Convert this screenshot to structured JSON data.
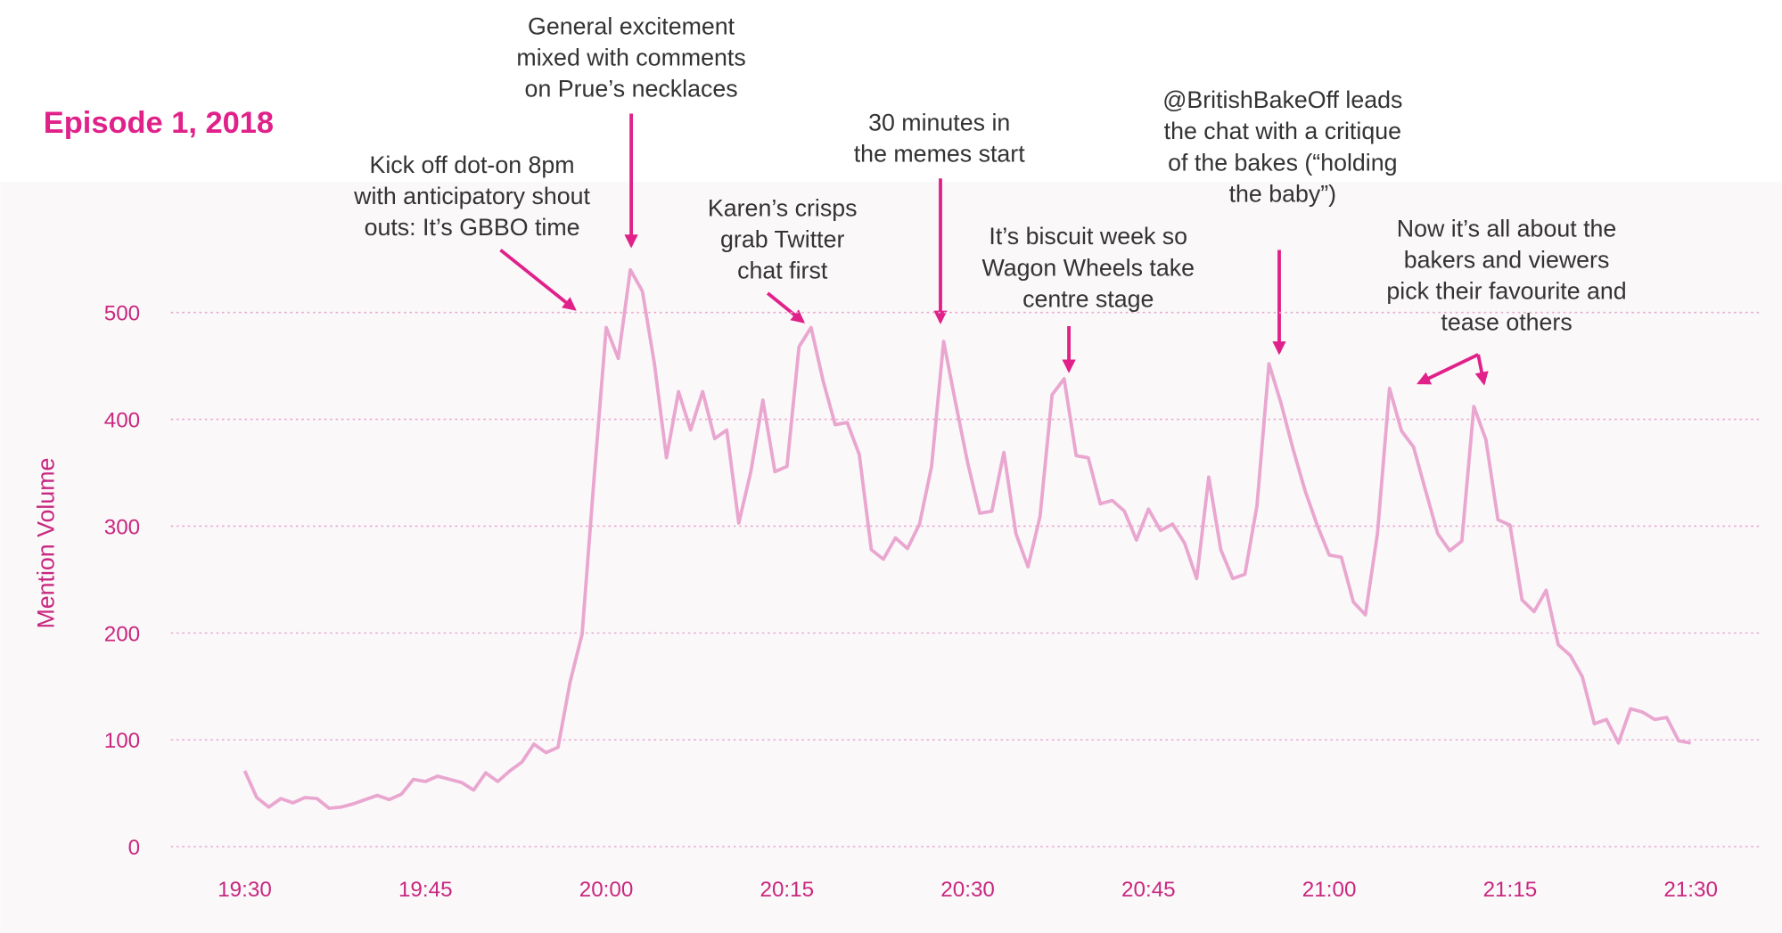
{
  "chart_data": {
    "type": "line",
    "title": "Episode 1, 2018",
    "y_label": "Mention Volume",
    "categories": [
      "19:30",
      null,
      null,
      null,
      null,
      null,
      null,
      null,
      null,
      null,
      null,
      null,
      null,
      null,
      null,
      "19:45",
      null,
      null,
      null,
      null,
      null,
      null,
      null,
      null,
      null,
      null,
      null,
      null,
      null,
      null,
      "20:00",
      null,
      null,
      null,
      null,
      null,
      null,
      null,
      null,
      null,
      null,
      null,
      null,
      null,
      null,
      "20:15",
      null,
      null,
      null,
      null,
      null,
      null,
      null,
      null,
      null,
      null,
      null,
      null,
      null,
      null,
      "20:30",
      null,
      null,
      null,
      null,
      null,
      null,
      null,
      null,
      null,
      null,
      null,
      null,
      null,
      null,
      "20:45",
      null,
      null,
      null,
      null,
      null,
      null,
      null,
      null,
      null,
      null,
      null,
      null,
      null,
      null,
      "21:00",
      null,
      null,
      null,
      null,
      null,
      null,
      null,
      null,
      null,
      null,
      null,
      null,
      null,
      null,
      "21:15",
      null,
      null,
      null,
      null,
      null,
      null,
      null,
      null,
      null,
      null,
      null,
      null,
      null,
      null,
      "21:30"
    ],
    "series": [
      {
        "name": "Mention Volume",
        "color": "#e9a7d0",
        "values": [
          71,
          46,
          37,
          45,
          41,
          46,
          45,
          36,
          37,
          40,
          44,
          48,
          44,
          49,
          63,
          61,
          66,
          63,
          60,
          53,
          69,
          61,
          71,
          79,
          96,
          88,
          93,
          154,
          199,
          346,
          486,
          457,
          540,
          520,
          452,
          364,
          426,
          390,
          426,
          382,
          390,
          303,
          351,
          418,
          351,
          356,
          468,
          486,
          436,
          395,
          397,
          367,
          278,
          269,
          289,
          279,
          302,
          356,
          473,
          415,
          359,
          312,
          314,
          369,
          293,
          262,
          309,
          423,
          438,
          366,
          364,
          321,
          324,
          314,
          287,
          316,
          296,
          302,
          284,
          251,
          346,
          278,
          251,
          255,
          319,
          452,
          415,
          372,
          333,
          301,
          273,
          271,
          229,
          217,
          293,
          429,
          389,
          374,
          333,
          293,
          277,
          286,
          412,
          381,
          306,
          301,
          231,
          220,
          240,
          189,
          179,
          159,
          115,
          119,
          97,
          129,
          126,
          119,
          121,
          99,
          97
        ]
      }
    ],
    "ylim": [
      0,
      580
    ],
    "yticks": [
      0,
      100,
      200,
      300,
      400,
      500
    ],
    "grid": true,
    "annotations": [
      {
        "lines": [
          "Kick off dot-on 8pm",
          "with anticipatory shout",
          "outs: It’s GBBO time"
        ]
      },
      {
        "lines": [
          "General excitement",
          "mixed with comments",
          "on Prue’s necklaces"
        ]
      },
      {
        "lines": [
          "Karen’s crisps",
          "grab Twitter",
          "chat first"
        ]
      },
      {
        "lines": [
          "30 minutes in",
          "the memes start"
        ]
      },
      {
        "lines": [
          "It’s biscuit week so",
          "Wagon Wheels take",
          "centre stage"
        ]
      },
      {
        "lines": [
          "@BritishBakeOff leads",
          "the chat with a critique",
          "of the bakes (“holding",
          "the baby”)"
        ]
      },
      {
        "lines": [
          "Now it’s all about the",
          "bakers and viewers",
          "pick their favourite and",
          "tease others"
        ]
      }
    ]
  }
}
